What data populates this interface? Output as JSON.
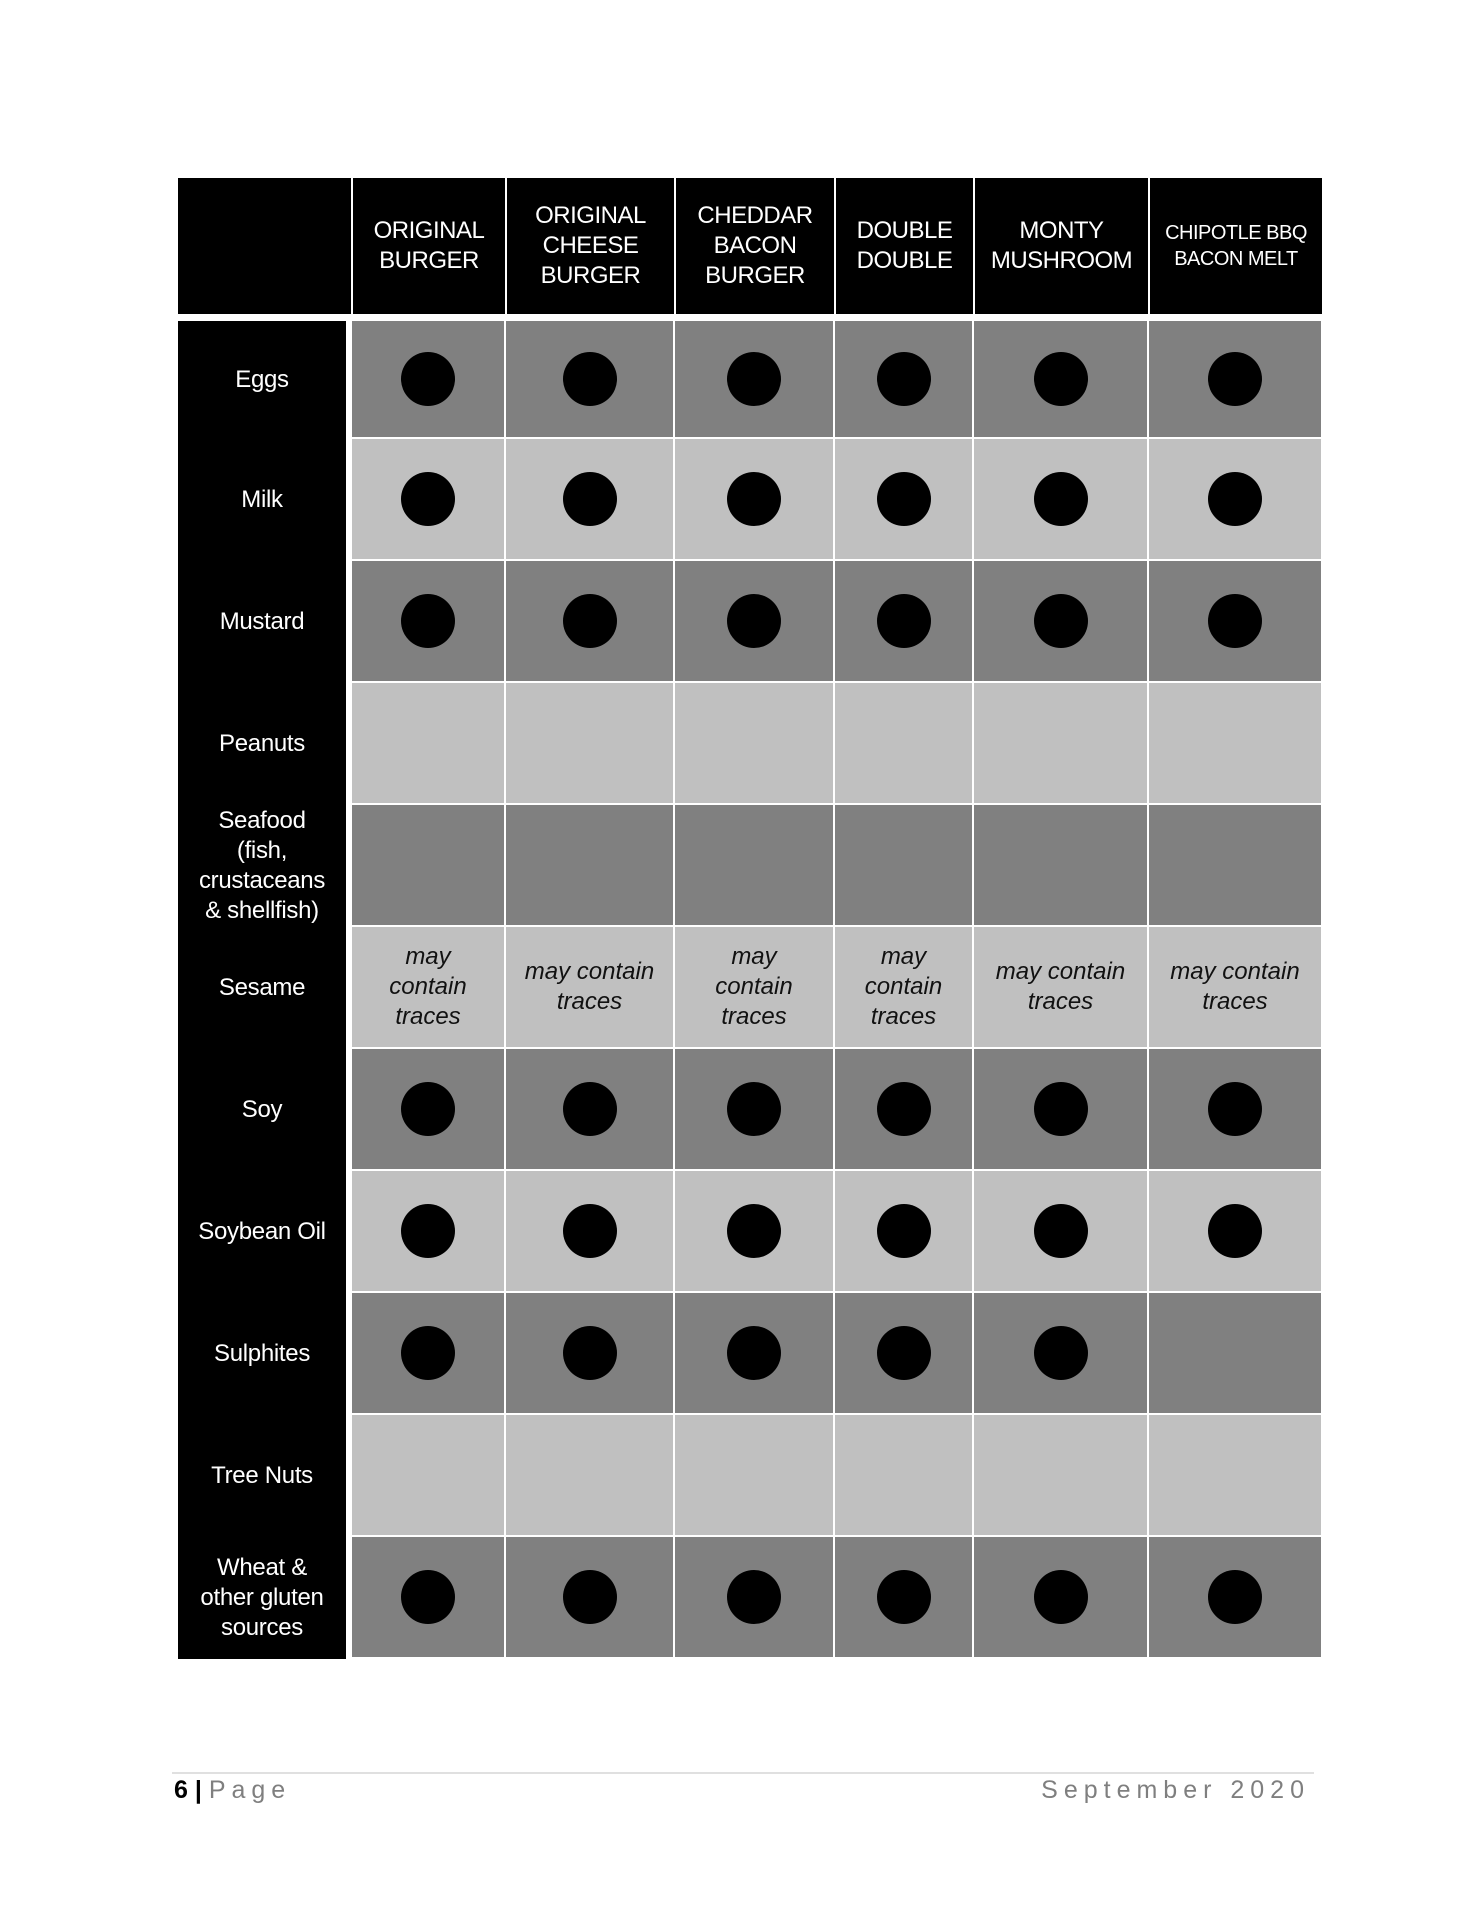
{
  "table": {
    "columns": [
      "",
      "ORIGINAL\nBURGER",
      "ORIGINAL\nCHEESE\nBURGER",
      "CHEDDAR\nBACON\nBURGER",
      "DOUBLE\nDOUBLE",
      "MONTY\nMUSHROOM",
      "CHIPOTLE BBQ\nBACON MELT"
    ],
    "rows": [
      {
        "label": "Eggs",
        "cells": [
          "dot",
          "dot",
          "dot",
          "dot",
          "dot",
          "dot"
        ]
      },
      {
        "label": "Milk",
        "cells": [
          "dot",
          "dot",
          "dot",
          "dot",
          "dot",
          "dot"
        ]
      },
      {
        "label": "Mustard",
        "cells": [
          "dot",
          "dot",
          "dot",
          "dot",
          "dot",
          "dot"
        ]
      },
      {
        "label": "Peanuts",
        "cells": [
          "",
          "",
          "",
          "",
          "",
          ""
        ]
      },
      {
        "label": "Seafood\n(fish,\ncrustaceans\n& shellfish)",
        "cells": [
          "",
          "",
          "",
          "",
          "",
          ""
        ]
      },
      {
        "label": "Sesame",
        "cells": [
          "may\ncontain\ntraces",
          "may contain\ntraces",
          "may\ncontain\ntraces",
          "may\ncontain\ntraces",
          "may contain\ntraces",
          "may contain\ntraces"
        ]
      },
      {
        "label": "Soy",
        "cells": [
          "dot",
          "dot",
          "dot",
          "dot",
          "dot",
          "dot"
        ]
      },
      {
        "label": "Soybean Oil",
        "cells": [
          "dot",
          "dot",
          "dot",
          "dot",
          "dot",
          "dot"
        ]
      },
      {
        "label": "Sulphites",
        "cells": [
          "dot",
          "dot",
          "dot",
          "dot",
          "dot",
          ""
        ]
      },
      {
        "label": "Tree Nuts",
        "cells": [
          "",
          "",
          "",
          "",
          "",
          ""
        ]
      },
      {
        "label": "Wheat &\nother gluten\nsources",
        "cells": [
          "dot",
          "dot",
          "dot",
          "dot",
          "dot",
          "dot"
        ]
      }
    ],
    "legend_icon": "filled-circle = contains allergen",
    "colors": {
      "header": "#000000",
      "row_dark": "#808080",
      "row_light": "#c0c0c0",
      "dot": "#000000"
    }
  },
  "footer": {
    "page_number": "6",
    "separator": "|",
    "page_word": "Page",
    "date": "September 2020"
  }
}
